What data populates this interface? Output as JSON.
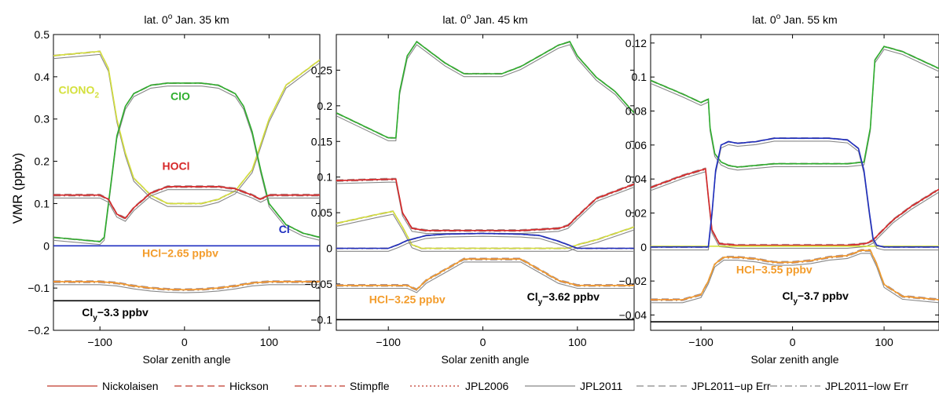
{
  "figure": {
    "ylabel": "VMR (ppbv)",
    "legend": [
      {
        "label": "Nickolaisen",
        "color": "#c0392b",
        "dash": "solid"
      },
      {
        "label": "Hickson",
        "color": "#c0392b",
        "dash": "dashed"
      },
      {
        "label": "Stimpfle",
        "color": "#c0392b",
        "dash": "dashdot"
      },
      {
        "label": "JPL2006",
        "color": "#c0392b",
        "dash": "dotted"
      },
      {
        "label": "JPL2011",
        "color": "#888888",
        "dash": "solid"
      },
      {
        "label": "JPL2011−up Err",
        "color": "#888888",
        "dash": "dashed"
      },
      {
        "label": "JPL2011−low Err",
        "color": "#888888",
        "dash": "dashdot"
      }
    ]
  },
  "chart_data": [
    {
      "type": "line",
      "title": "lat. 0o Jan.  35 km",
      "title_main": "lat. 0",
      "title_sup": "o",
      "title_rest": " Jan.  35 km",
      "xlabel": "Solar zenith angle",
      "xlim": [
        -155,
        160
      ],
      "ylim": [
        -0.2,
        0.5
      ],
      "xticks": [
        -100,
        0,
        100
      ],
      "xtick_labels": [
        "−100",
        "0",
        "100"
      ],
      "yticks": [
        -0.2,
        -0.1,
        0,
        0.1,
        0.2,
        0.3,
        0.4,
        0.5
      ],
      "ytick_labels": [
        "−0.2",
        "−0.1",
        "0",
        "0.1",
        "0.2",
        "0.3",
        "0.4",
        "0.5"
      ],
      "series": [
        {
          "name": "ClONO2",
          "color": "#d4e03c",
          "x": [
            -155,
            -100,
            -90,
            -80,
            -70,
            -60,
            -40,
            -20,
            0,
            20,
            40,
            60,
            80,
            90,
            100,
            120,
            140,
            160
          ],
          "y": [
            0.45,
            0.46,
            0.42,
            0.3,
            0.22,
            0.16,
            0.12,
            0.1,
            0.1,
            0.1,
            0.11,
            0.13,
            0.18,
            0.24,
            0.3,
            0.38,
            0.41,
            0.44
          ]
        },
        {
          "name": "ClO",
          "color": "#2eae2e",
          "x": [
            -155,
            -100,
            -95,
            -90,
            -80,
            -70,
            -60,
            -40,
            -20,
            0,
            20,
            40,
            60,
            70,
            80,
            90,
            100,
            120,
            140,
            160
          ],
          "y": [
            0.02,
            0.01,
            0.02,
            0.1,
            0.26,
            0.33,
            0.36,
            0.38,
            0.385,
            0.385,
            0.385,
            0.38,
            0.36,
            0.33,
            0.27,
            0.18,
            0.1,
            0.05,
            0.03,
            0.02
          ]
        },
        {
          "name": "HOCl",
          "color": "#d62728",
          "x": [
            -155,
            -100,
            -90,
            -80,
            -70,
            -60,
            -40,
            -20,
            0,
            20,
            40,
            60,
            80,
            90,
            100,
            120,
            160
          ],
          "y": [
            0.12,
            0.12,
            0.11,
            0.075,
            0.065,
            0.09,
            0.125,
            0.14,
            0.14,
            0.14,
            0.14,
            0.135,
            0.12,
            0.11,
            0.12,
            0.12,
            0.12
          ]
        },
        {
          "name": "Cl",
          "color": "#1f2fc0",
          "x": [
            -155,
            160
          ],
          "y": [
            0.0,
            0.0
          ]
        },
        {
          "name": "HCl",
          "color": "#f39c2b",
          "x": [
            -155,
            -100,
            -80,
            -60,
            -40,
            -20,
            0,
            20,
            40,
            60,
            80,
            100,
            160
          ],
          "y": [
            -0.085,
            -0.085,
            -0.088,
            -0.095,
            -0.1,
            -0.103,
            -0.104,
            -0.103,
            -0.1,
            -0.095,
            -0.088,
            -0.085,
            -0.085
          ]
        },
        {
          "name": "Cly",
          "color": "#000000",
          "x": [
            -155,
            160
          ],
          "y": [
            -0.13,
            -0.13
          ]
        }
      ],
      "annotations": [
        {
          "key": "clono2",
          "text": "ClONO",
          "sub": "2",
          "x": -125,
          "y": 0.36,
          "color": "#d4e03c"
        },
        {
          "key": "clo",
          "text": "ClO",
          "x": -5,
          "y": 0.345,
          "color": "#2eae2e"
        },
        {
          "key": "hocl",
          "text": "HOCl",
          "x": -10,
          "y": 0.18,
          "color": "#d62728"
        },
        {
          "key": "cl",
          "text": "Cl",
          "x": 118,
          "y": 0.03,
          "color": "#1f2fc0"
        },
        {
          "key": "hcl",
          "text": "HCl−2.65 ppbv",
          "x": -5,
          "y": -0.026,
          "color": "#f39c2b"
        },
        {
          "key": "cly",
          "text": "Cl",
          "sub": "y",
          "rest": "−3.3 ppbv",
          "x": -82,
          "y": -0.167,
          "color": "#000000"
        }
      ]
    },
    {
      "type": "line",
      "title": "lat. 0o Jan.  45 km",
      "title_main": "lat. 0",
      "title_sup": "o",
      "title_rest": " Jan.  45 km",
      "xlabel": "Solar zenith angle",
      "xlim": [
        -155,
        160
      ],
      "ylim": [
        -0.115,
        0.3
      ],
      "xticks": [
        -100,
        0,
        100
      ],
      "xtick_labels": [
        "−100",
        "0",
        "100"
      ],
      "yticks": [
        -0.1,
        -0.05,
        0,
        0.05,
        0.1,
        0.15,
        0.2,
        0.25
      ],
      "ytick_labels": [
        "−0.1",
        "−0.05",
        "0",
        "0.05",
        "0.1",
        "0.15",
        "0.2",
        "0.25"
      ],
      "series": [
        {
          "name": "ClO",
          "color": "#2eae2e",
          "x": [
            -155,
            -100,
            -92,
            -88,
            -80,
            -70,
            -60,
            -40,
            -20,
            0,
            20,
            40,
            60,
            80,
            92,
            100,
            120,
            140,
            160
          ],
          "y": [
            0.19,
            0.155,
            0.155,
            0.22,
            0.27,
            0.29,
            0.28,
            0.26,
            0.245,
            0.245,
            0.245,
            0.255,
            0.27,
            0.285,
            0.29,
            0.27,
            0.24,
            0.22,
            0.19
          ]
        },
        {
          "name": "HOCl",
          "color": "#d62728",
          "x": [
            -155,
            -100,
            -92,
            -85,
            -75,
            -60,
            -40,
            0,
            40,
            80,
            90,
            100,
            120,
            160
          ],
          "y": [
            0.095,
            0.097,
            0.097,
            0.05,
            0.028,
            0.025,
            0.025,
            0.025,
            0.025,
            0.028,
            0.032,
            0.045,
            0.07,
            0.09
          ]
        },
        {
          "name": "ClONO2",
          "color": "#d4e03c",
          "x": [
            -155,
            -110,
            -95,
            -85,
            -75,
            -65,
            -50,
            0,
            50,
            90,
            100,
            120,
            160
          ],
          "y": [
            0.035,
            0.048,
            0.052,
            0.03,
            0.005,
            0.0,
            0.0,
            0.0,
            0.0,
            0.0,
            0.005,
            0.012,
            0.03
          ]
        },
        {
          "name": "Cl",
          "color": "#1f2fc0",
          "x": [
            -155,
            -100,
            -90,
            -80,
            -60,
            -40,
            0,
            40,
            60,
            80,
            90,
            100,
            160
          ],
          "y": [
            0.0,
            0.0,
            0.005,
            0.011,
            0.018,
            0.02,
            0.021,
            0.02,
            0.018,
            0.01,
            0.005,
            0.0,
            0.0
          ]
        },
        {
          "name": "HCl",
          "color": "#f39c2b",
          "x": [
            -155,
            -100,
            -80,
            -70,
            -60,
            -40,
            -20,
            0,
            20,
            40,
            60,
            80,
            100,
            120,
            160
          ],
          "y": [
            -0.052,
            -0.052,
            -0.052,
            -0.058,
            -0.045,
            -0.03,
            -0.015,
            -0.015,
            -0.015,
            -0.015,
            -0.03,
            -0.045,
            -0.052,
            -0.052,
            -0.052
          ]
        },
        {
          "name": "Cly",
          "color": "#000000",
          "x": [
            -155,
            160
          ],
          "y": [
            -0.1,
            -0.1
          ]
        }
      ],
      "annotations": [
        {
          "key": "hcl",
          "text": "HCl−3.25 ppbv",
          "x": -80,
          "y": -0.077,
          "color": "#f39c2b"
        },
        {
          "key": "cly",
          "text": "Cl",
          "sub": "y",
          "rest": "−3.62 ppbv",
          "x": 85,
          "y": -0.073,
          "color": "#000000"
        }
      ]
    },
    {
      "type": "line",
      "title": "lat. 0o Jan.  55 km",
      "title_main": "lat. 0",
      "title_sup": "o",
      "title_rest": " Jan.  55 km",
      "xlabel": "Solar zenith angle",
      "xlim": [
        -155,
        160
      ],
      "ylim": [
        -0.049,
        0.125
      ],
      "xticks": [
        -100,
        0,
        100
      ],
      "xtick_labels": [
        "−100",
        "0",
        "100"
      ],
      "yticks": [
        -0.04,
        -0.02,
        0,
        0.02,
        0.04,
        0.06,
        0.08,
        0.1,
        0.12
      ],
      "ytick_labels": [
        "−0.04",
        "−0.02",
        "0",
        "0.02",
        "0.04",
        "0.06",
        "0.08",
        "0.1",
        "0.12"
      ],
      "series": [
        {
          "name": "ClO",
          "color": "#2eae2e",
          "x": [
            -155,
            -120,
            -100,
            -92,
            -90,
            -85,
            -78,
            -70,
            -60,
            -40,
            -20,
            0,
            20,
            40,
            60,
            78,
            85,
            90,
            100,
            120,
            140,
            160
          ],
          "y": [
            0.098,
            0.09,
            0.085,
            0.087,
            0.07,
            0.055,
            0.05,
            0.048,
            0.047,
            0.048,
            0.049,
            0.049,
            0.049,
            0.049,
            0.049,
            0.05,
            0.07,
            0.11,
            0.118,
            0.115,
            0.11,
            0.105
          ]
        },
        {
          "name": "HOCl",
          "color": "#d62728",
          "x": [
            -155,
            -120,
            -95,
            -92,
            -88,
            -80,
            -60,
            0,
            60,
            80,
            88,
            95,
            110,
            130,
            160
          ],
          "y": [
            0.035,
            0.042,
            0.046,
            0.03,
            0.01,
            0.002,
            0.001,
            0.001,
            0.001,
            0.002,
            0.004,
            0.008,
            0.016,
            0.024,
            0.034
          ]
        },
        {
          "name": "ClONO2",
          "color": "#d4e03c",
          "x": [
            -155,
            160
          ],
          "y": [
            0.0005,
            0.0005
          ]
        },
        {
          "name": "Cl",
          "color": "#1f2fc0",
          "x": [
            -155,
            -100,
            -92,
            -88,
            -84,
            -78,
            -70,
            -60,
            -40,
            -20,
            0,
            20,
            40,
            60,
            72,
            78,
            84,
            88,
            92,
            100,
            160
          ],
          "y": [
            0.0,
            0.0,
            0.0,
            0.02,
            0.045,
            0.06,
            0.062,
            0.061,
            0.062,
            0.064,
            0.064,
            0.064,
            0.064,
            0.063,
            0.058,
            0.045,
            0.02,
            0.005,
            0.001,
            0.0,
            0.0
          ]
        },
        {
          "name": "HCl",
          "color": "#f39c2b",
          "x": [
            -155,
            -120,
            -100,
            -92,
            -85,
            -75,
            -60,
            -40,
            -20,
            0,
            20,
            40,
            60,
            75,
            85,
            92,
            100,
            120,
            160
          ],
          "y": [
            -0.031,
            -0.031,
            -0.028,
            -0.02,
            -0.01,
            -0.006,
            -0.006,
            -0.007,
            -0.009,
            -0.009,
            -0.008,
            -0.006,
            -0.005,
            -0.002,
            -0.002,
            -0.01,
            -0.022,
            -0.029,
            -0.031
          ]
        },
        {
          "name": "Cly",
          "color": "#000000",
          "x": [
            -155,
            160
          ],
          "y": [
            -0.044,
            -0.044
          ]
        }
      ],
      "annotations": [
        {
          "key": "hcl",
          "text": "HCl−3.55 ppbv",
          "x": -20,
          "y": -0.0155,
          "color": "#f39c2b"
        },
        {
          "key": "cly",
          "text": "Cl",
          "sub": "y",
          "rest": "−3.7 ppbv",
          "x": 25,
          "y": -0.031,
          "color": "#000000"
        }
      ]
    }
  ]
}
